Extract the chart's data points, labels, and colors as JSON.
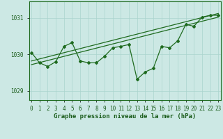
{
  "title": "Graphe pression niveau de la mer (hPa)",
  "x_values": [
    0,
    1,
    2,
    3,
    4,
    5,
    6,
    7,
    8,
    9,
    10,
    11,
    12,
    13,
    14,
    15,
    16,
    17,
    18,
    19,
    20,
    21,
    22,
    23
  ],
  "x_labels": [
    "0",
    "1",
    "2",
    "3",
    "4",
    "5",
    "6",
    "7",
    "8",
    "9",
    "10",
    "11",
    "12",
    "13",
    "14",
    "15",
    "16",
    "17",
    "18",
    "19",
    "20",
    "21",
    "22",
    "23"
  ],
  "line1_y": [
    1030.05,
    1029.77,
    1029.67,
    1029.8,
    1030.22,
    1030.32,
    1029.82,
    1029.77,
    1029.77,
    1029.95,
    1030.18,
    1030.22,
    1030.27,
    1029.32,
    1029.52,
    1029.62,
    1030.22,
    1030.18,
    1030.37,
    1030.82,
    1030.77,
    1031.02,
    1031.07,
    1031.07
  ],
  "trend1_x": [
    0,
    23
  ],
  "trend1_y": [
    1029.72,
    1031.02
  ],
  "trend2_x": [
    0,
    23
  ],
  "trend2_y": [
    1029.82,
    1031.12
  ],
  "ylim_min": 1028.75,
  "ylim_max": 1031.45,
  "yticks": [
    1029,
    1030,
    1031
  ],
  "xlim_min": -0.3,
  "xlim_max": 23.3,
  "line_color": "#1f6b1f",
  "bg_color": "#cce8e4",
  "grid_color": "#aad4ce",
  "label_color": "#1a5c1a",
  "title_color": "#1a5c1a",
  "marker": "D",
  "marker_size": 2.0,
  "line_width": 0.9,
  "tick_label_fontsize": 5.5,
  "title_fontsize": 6.5
}
